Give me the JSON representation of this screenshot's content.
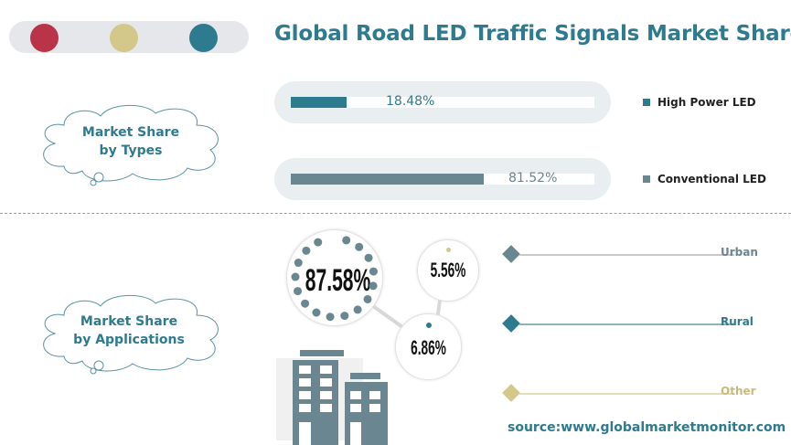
{
  "header": {
    "title": "Global Road LED Traffic Signals Market Share"
  },
  "colors": {
    "red": "#b83446",
    "gold": "#d4c78a",
    "teal": "#2e7a8f",
    "slate": "#6a8690"
  },
  "types_label": {
    "line1": "Market Share",
    "line2": "by Types"
  },
  "apps_label": {
    "line1": "Market Share",
    "line2": "by Applications"
  },
  "chart_data": [
    {
      "type": "bar",
      "title": "Market Share by Types",
      "categories": [
        "High Power LED",
        "Conventional LED"
      ],
      "values": [
        18.48,
        81.52
      ],
      "labels": [
        "18.48%",
        "81.52%"
      ],
      "unit": "%"
    },
    {
      "type": "pie",
      "title": "Market Share by Applications",
      "categories": [
        "Urban",
        "Rural",
        "Other"
      ],
      "values": [
        87.58,
        6.86,
        5.56
      ],
      "labels": [
        "87.58%",
        "6.86%",
        "5.56%"
      ],
      "unit": "%"
    }
  ],
  "source": "source:www.globalmarketmonitor.com"
}
